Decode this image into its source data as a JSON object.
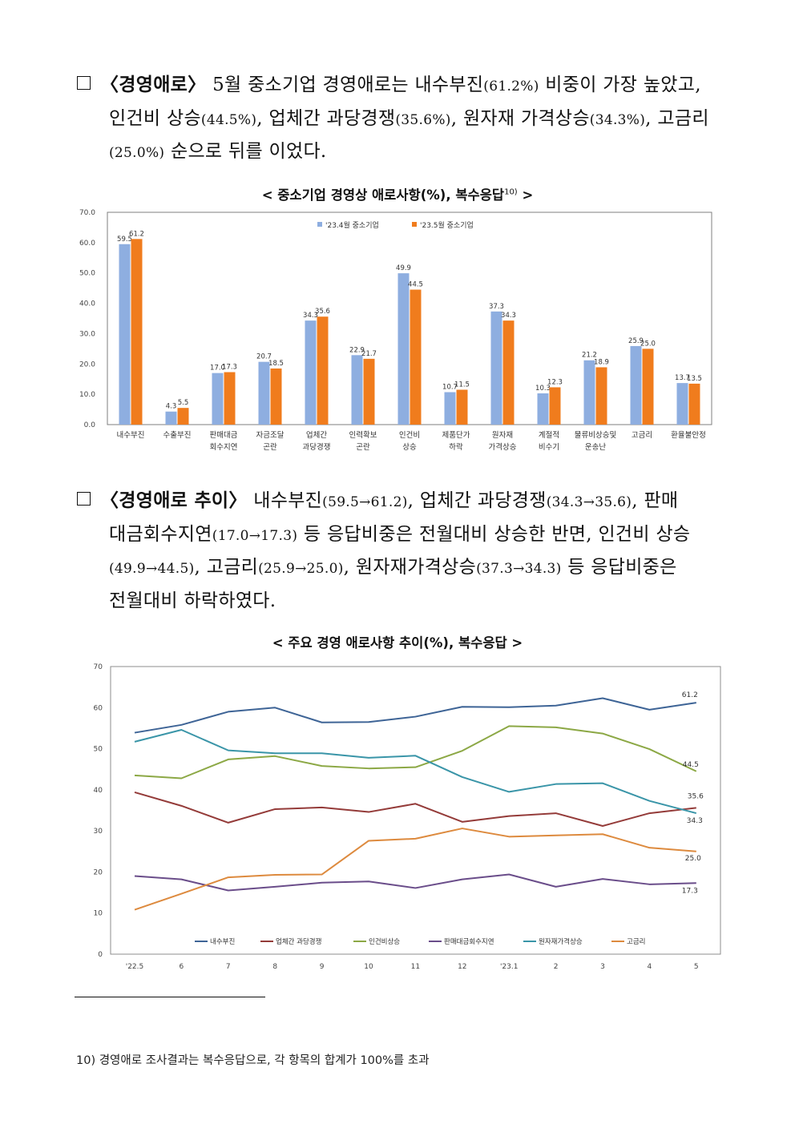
{
  "para1": {
    "head": "〈경영애로〉",
    "t1": "5월 중소기업 경영애로는 내수부진",
    "v1": "(61.2%)",
    "t2": "비중이 가장 높았고,",
    "t3": "인건비 상승",
    "v2": "(44.5%)",
    "t4": ", 업체간 과당경쟁",
    "v3": "(35.6%)",
    "t5": ", 원자재 가격상승",
    "v4": "(34.3%)",
    "t6": ", 고금리",
    "v5": "(25.0%)",
    "t7": "순으로 뒤를 이었다."
  },
  "caption1": {
    "text": "< 중소기업 경영상 애로사항(%), 복수응답",
    "sup": "10)",
    "close": " >"
  },
  "para2": {
    "head": "〈경영애로 추이〉",
    "t1": "내수부진",
    "v1": "(59.5→61.2)",
    "t2": ", 업체간 과당경쟁",
    "v2": "(34.3→35.6)",
    "t3": ", 판매",
    "t4": "대금회수지연",
    "v3": "(17.0→17.3)",
    "t5": "등 응답비중은 전월대비 상승한 반면, 인건비 상승",
    "v4": "(49.9→44.5)",
    "t6": ", 고금리",
    "v5": "(25.9→25.0)",
    "t7": ", 원자재가격상승",
    "v6": "(37.3→34.3)",
    "t8": "등 응답비중은",
    "t9": "전월대비 하락하였다."
  },
  "caption2": {
    "text": "< 주요 경영 애로사항 추이(%), 복수응답 >"
  },
  "chart_data": [
    {
      "type": "bar",
      "ylim": [
        0,
        70
      ],
      "yticks": [
        "0.0",
        "10.0",
        "20.0",
        "30.0",
        "40.0",
        "50.0",
        "60.0",
        "70.0"
      ],
      "categories": [
        [
          "내수부진"
        ],
        [
          "수출부진"
        ],
        [
          "판매대금",
          "회수지연"
        ],
        [
          "자금조달",
          "곤란"
        ],
        [
          "업체간",
          "과당경쟁"
        ],
        [
          "인력확보",
          "곤란"
        ],
        [
          "인건비",
          "상승"
        ],
        [
          "제품단가",
          "하락"
        ],
        [
          "원자재",
          "가격상승"
        ],
        [
          "계절적",
          "비수기"
        ],
        [
          "물류비상승및",
          "운송난"
        ],
        [
          "고금리"
        ],
        [
          "환율불안정"
        ]
      ],
      "series": [
        {
          "name": "'23.4월 중소기업",
          "color": "#8eaee0",
          "values": [
            59.5,
            4.3,
            17.0,
            20.7,
            34.3,
            22.9,
            49.9,
            10.7,
            37.3,
            10.3,
            21.2,
            25.9,
            13.7
          ]
        },
        {
          "name": "'23.5월 중소기업",
          "color": "#f07c1d",
          "values": [
            61.2,
            5.5,
            17.3,
            18.5,
            35.6,
            21.7,
            44.5,
            11.5,
            34.3,
            12.3,
            18.9,
            25.0,
            13.5
          ]
        }
      ]
    },
    {
      "type": "line",
      "ylim": [
        0,
        70
      ],
      "yticks": [
        "0",
        "10",
        "20",
        "30",
        "40",
        "50",
        "60",
        "70"
      ],
      "x": [
        "'22.5",
        "6",
        "7",
        "8",
        "9",
        "10",
        "11",
        "12",
        "'23.1",
        "2",
        "3",
        "4",
        "5"
      ],
      "series": [
        {
          "name": "내수부진",
          "color": "#3e6496",
          "end_label": "61.2",
          "values": [
            53.9,
            55.8,
            59.0,
            60.0,
            56.4,
            56.5,
            57.8,
            60.2,
            60.1,
            60.5,
            62.3,
            59.5,
            61.2
          ]
        },
        {
          "name": "업체간 과당경쟁",
          "color": "#943b39",
          "end_label": "35.6",
          "values": [
            39.4,
            36.1,
            32.0,
            35.3,
            35.7,
            34.6,
            36.6,
            32.2,
            33.6,
            34.3,
            31.2,
            34.3,
            35.6
          ]
        },
        {
          "name": "인건비상승",
          "color": "#8ca845",
          "end_label": "44.5",
          "values": [
            43.5,
            42.8,
            47.4,
            48.2,
            45.8,
            45.2,
            45.5,
            49.5,
            55.5,
            55.2,
            53.7,
            49.9,
            44.5
          ]
        },
        {
          "name": "판매대금회수지연",
          "color": "#6a4d8a",
          "end_label": "17.3",
          "values": [
            19.0,
            18.2,
            15.5,
            16.4,
            17.4,
            17.7,
            16.1,
            18.2,
            19.4,
            16.4,
            18.3,
            17.0,
            17.3
          ]
        },
        {
          "name": "원자재가격상승",
          "color": "#3a95a8",
          "end_label": "34.3",
          "values": [
            51.7,
            54.6,
            49.6,
            48.9,
            48.9,
            47.8,
            48.3,
            43.1,
            39.5,
            41.4,
            41.6,
            37.3,
            34.3
          ]
        },
        {
          "name": "고금리",
          "color": "#dd8a3e",
          "end_label": "25.0",
          "values": [
            10.8,
            14.7,
            18.7,
            19.3,
            19.4,
            27.6,
            28.1,
            30.6,
            28.6,
            28.9,
            29.2,
            25.9,
            25.0
          ]
        }
      ]
    }
  ],
  "footnote": {
    "num": "10)",
    "text": "경영애로 조사결과는 복수응답으로, 각 항목의 합계가 100%를 초과"
  }
}
